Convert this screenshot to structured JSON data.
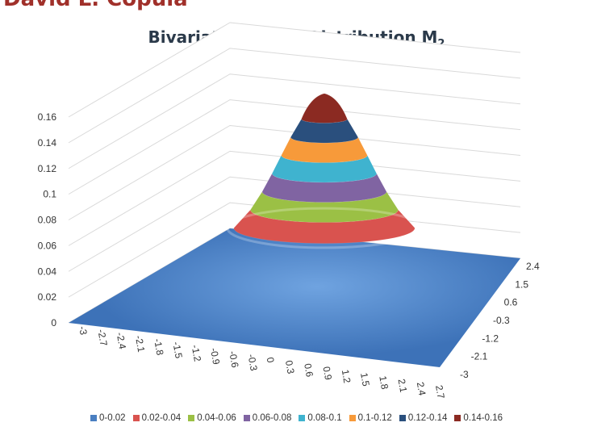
{
  "slide": {
    "header": "David L. Copula"
  },
  "chart_data": {
    "type": "surface",
    "title": "Bivariate Normal Distribution M",
    "title_subscript": "2",
    "z_ticks": [
      "0",
      "0.02",
      "0.04",
      "0.06",
      "0.08",
      "0.1",
      "0.12",
      "0.14",
      "0.16"
    ],
    "zlim": [
      0,
      0.16
    ],
    "x_ticks": [
      "-3",
      "-2.7",
      "-2.4",
      "-2.1",
      "-1.8",
      "-1.5",
      "-1.2",
      "-0.9",
      "-0.6",
      "-0.3",
      "0",
      "0.3",
      "0.6",
      "0.9",
      "1.2",
      "1.5",
      "1.8",
      "2.1",
      "2.4",
      "2.7"
    ],
    "y_ticks": [
      "-3",
      "-2.1",
      "-1.2",
      "-0.3",
      "0.6",
      "1.5",
      "2.4"
    ],
    "peak_value": 0.16,
    "grid": true,
    "legend_position": "bottom",
    "series": [
      {
        "name": "0-0.02",
        "color": "#4a7fc1"
      },
      {
        "name": "0.02-0.04",
        "color": "#d9534f"
      },
      {
        "name": "0.04-0.06",
        "color": "#9bc045"
      },
      {
        "name": "0.06-0.08",
        "color": "#8064a2"
      },
      {
        "name": "0.08-0.1",
        "color": "#3fb3cf"
      },
      {
        "name": "0.1-0.12",
        "color": "#f79a3a"
      },
      {
        "name": "0.12-0.14",
        "color": "#2a4f7d"
      },
      {
        "name": "0.14-0.16",
        "color": "#8b2a22"
      }
    ]
  }
}
